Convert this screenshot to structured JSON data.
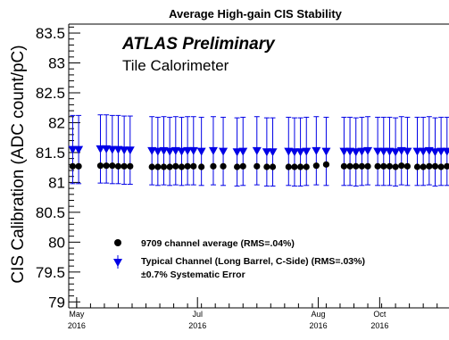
{
  "chart_data": {
    "type": "scatter",
    "title": "Average High-gain CIS Stability",
    "annotations": [
      "ATLAS Preliminary",
      "Tile Calorimeter"
    ],
    "xlabel": "",
    "ylabel": "CIS Calibration (ADC count/pC)",
    "xlim": [
      "2016-04-27",
      "2016-11-05"
    ],
    "ylim": [
      78.9,
      83.65
    ],
    "yticks": [
      79,
      79.5,
      80,
      80.5,
      81,
      81.5,
      82,
      82.5,
      83,
      83.5
    ],
    "ytick_labels": [
      "79",
      "79.5",
      "80",
      "80.5",
      "81",
      "81.5",
      "82",
      "82.5",
      "83",
      "83.5"
    ],
    "xticks": [
      {
        "date": "2016-05-01",
        "label": [
          "May",
          "2016"
        ]
      },
      {
        "date": "2016-07-01",
        "label": [
          "Jul",
          "2016"
        ]
      },
      {
        "date": "2016-08-31",
        "label": [
          "Aug",
          "2016"
        ]
      },
      {
        "date": "2016-10-01",
        "label": [
          "Oct",
          "2016"
        ]
      }
    ],
    "legend_position": "bottom-left",
    "systematic_error_label": "±0.7% Systematic Error",
    "systematic_error_fraction": 0.007,
    "series": [
      {
        "name": "9709 channel average (RMS=.04%)",
        "marker": "circle",
        "color": "#000000",
        "x": [
          "2016-04-29",
          "2016-05-02",
          "2016-05-13",
          "2016-05-16",
          "2016-05-19",
          "2016-05-22",
          "2016-05-25",
          "2016-05-28",
          "2016-06-08",
          "2016-06-11",
          "2016-06-14",
          "2016-06-17",
          "2016-06-20",
          "2016-06-23",
          "2016-06-26",
          "2016-06-29",
          "2016-07-03",
          "2016-07-09",
          "2016-07-14",
          "2016-07-21",
          "2016-07-24",
          "2016-07-31",
          "2016-08-05",
          "2016-08-08",
          "2016-08-16",
          "2016-08-19",
          "2016-08-22",
          "2016-08-25",
          "2016-08-30",
          "2016-09-04",
          "2016-09-13",
          "2016-09-16",
          "2016-09-19",
          "2016-09-22",
          "2016-09-25",
          "2016-09-30",
          "2016-10-03",
          "2016-10-06",
          "2016-10-09",
          "2016-10-12",
          "2016-10-15",
          "2016-10-20",
          "2016-10-23",
          "2016-10-26",
          "2016-10-29",
          "2016-11-01",
          "2016-11-04"
        ],
        "y": [
          81.27,
          81.27,
          81.28,
          81.28,
          81.28,
          81.27,
          81.27,
          81.27,
          81.26,
          81.26,
          81.26,
          81.26,
          81.27,
          81.26,
          81.27,
          81.27,
          81.26,
          81.27,
          81.27,
          81.26,
          81.27,
          81.27,
          81.26,
          81.26,
          81.26,
          81.26,
          81.26,
          81.26,
          81.28,
          81.3,
          81.27,
          81.27,
          81.27,
          81.27,
          81.27,
          81.27,
          81.27,
          81.27,
          81.26,
          81.28,
          81.27,
          81.26,
          81.26,
          81.27,
          81.27,
          81.26,
          81.27
        ]
      },
      {
        "name": "Typical Channel (Long Barrel, C-Side) (RMS=.03%)",
        "marker": "triangle-down",
        "color": "#0000e6",
        "x": [
          "2016-04-29",
          "2016-05-02",
          "2016-05-13",
          "2016-05-16",
          "2016-05-19",
          "2016-05-22",
          "2016-05-25",
          "2016-05-28",
          "2016-06-08",
          "2016-06-11",
          "2016-06-14",
          "2016-06-17",
          "2016-06-20",
          "2016-06-23",
          "2016-06-26",
          "2016-06-29",
          "2016-07-03",
          "2016-07-09",
          "2016-07-14",
          "2016-07-21",
          "2016-07-24",
          "2016-07-31",
          "2016-08-05",
          "2016-08-08",
          "2016-08-16",
          "2016-08-19",
          "2016-08-22",
          "2016-08-25",
          "2016-08-30",
          "2016-09-04",
          "2016-09-13",
          "2016-09-16",
          "2016-09-19",
          "2016-09-22",
          "2016-09-25",
          "2016-09-30",
          "2016-10-03",
          "2016-10-06",
          "2016-10-09",
          "2016-10-12",
          "2016-10-15",
          "2016-10-20",
          "2016-10-23",
          "2016-10-26",
          "2016-10-29",
          "2016-11-01",
          "2016-11-04"
        ],
        "y": [
          81.55,
          81.55,
          81.56,
          81.56,
          81.55,
          81.55,
          81.54,
          81.54,
          81.53,
          81.52,
          81.53,
          81.52,
          81.53,
          81.52,
          81.53,
          81.53,
          81.52,
          81.53,
          81.52,
          81.51,
          81.52,
          81.53,
          81.51,
          81.51,
          81.52,
          81.51,
          81.51,
          81.52,
          81.53,
          81.52,
          81.52,
          81.52,
          81.51,
          81.52,
          81.53,
          81.52,
          81.52,
          81.52,
          81.51,
          81.53,
          81.52,
          81.52,
          81.52,
          81.53,
          81.51,
          81.52,
          81.52
        ]
      }
    ]
  }
}
